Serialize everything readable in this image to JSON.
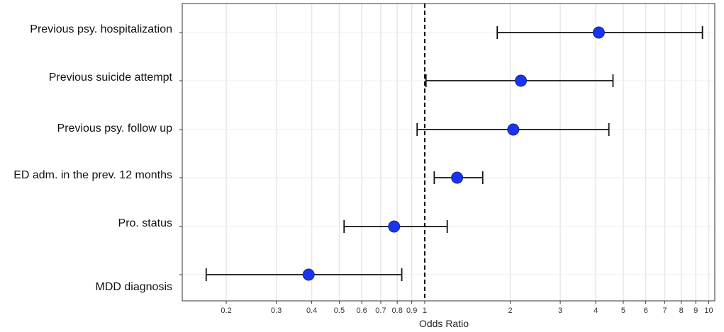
{
  "chart_data": {
    "type": "scatter",
    "xlabel": "Odds Ratio",
    "ylabel": "",
    "x_scale": "log",
    "xlim": [
      0.14,
      10.5
    ],
    "reference_line": 1,
    "grid": true,
    "marker_color": "#1a33f2",
    "x_ticks": [
      0.2,
      0.3,
      0.4,
      0.5,
      0.6,
      0.7,
      0.8,
      0.9,
      1,
      2,
      3,
      4,
      5,
      6,
      7,
      8,
      9,
      10
    ],
    "x_tick_labels": [
      "0.2",
      "0.3",
      "0.4",
      "0.5",
      "0.6",
      "0.7",
      "0.8",
      "0.9",
      "1",
      "2",
      "3",
      "4",
      "5",
      "6",
      "7",
      "8",
      "9",
      "10"
    ],
    "categories": [
      "Previous psy. hospitalization",
      "Previous suicide attempt",
      "Previous psy. follow up",
      "ED adm. in the prev. 12 months",
      "Pro. status",
      "MDD diagnosis"
    ],
    "estimates": [
      4.1,
      2.18,
      2.05,
      1.3,
      0.78,
      0.39
    ],
    "ci_lower": [
      1.8,
      1.01,
      0.94,
      1.08,
      0.52,
      0.17
    ],
    "ci_upper": [
      9.5,
      4.6,
      4.45,
      1.6,
      1.2,
      0.83
    ]
  }
}
